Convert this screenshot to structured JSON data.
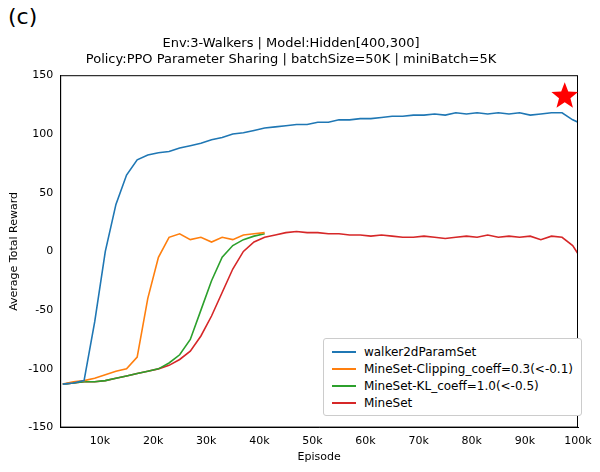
{
  "chart_data": {
    "type": "line",
    "panel_label": "(c)",
    "title": [
      "Env:3-Walkers | Model:Hidden[400,300]",
      "Policy:PPO Parameter Sharing | batchSize=50K | miniBatch=5K"
    ],
    "x_label": "Episode",
    "y_label": "Average Total Reward",
    "x": [
      3000,
      5000,
      7000,
      9000,
      11000,
      13000,
      15000,
      17000,
      19000,
      21000,
      23000,
      25000,
      27000,
      29000,
      31000,
      33000,
      35000,
      37000,
      39000,
      41000,
      43000,
      45000,
      47000,
      49000,
      51000,
      53000,
      55000,
      57000,
      59000,
      61000,
      63000,
      65000,
      67000,
      69000,
      71000,
      73000,
      75000,
      77000,
      79000,
      81000,
      83000,
      85000,
      87000,
      89000,
      91000,
      93000,
      95000,
      97000,
      99000,
      100000
    ],
    "series": [
      {
        "name": "walker2dParamSet",
        "color": "#1f77b4",
        "values": [
          -113,
          -112,
          -110,
          -60,
          0,
          40,
          65,
          78,
          82,
          84,
          85,
          88,
          90,
          92,
          95,
          97,
          100,
          101,
          103,
          105,
          106,
          107,
          108,
          108,
          110,
          110,
          112,
          112,
          113,
          113,
          114,
          115,
          115,
          116,
          116,
          117,
          116,
          118,
          117,
          118,
          117,
          118,
          117,
          118,
          116,
          117,
          118,
          118,
          112,
          110
        ]
      },
      {
        "name": "MineSet-Clipping_coeff=0.3(<-0.1)",
        "color": "#ff7f0e",
        "values": [
          -113,
          -111,
          -110,
          -108,
          -105,
          -102,
          -100,
          -90,
          -40,
          -5,
          12,
          15,
          10,
          12,
          8,
          12,
          10,
          14,
          15,
          16,
          null,
          null,
          null,
          null,
          null,
          null,
          null,
          null,
          null,
          null,
          null,
          null,
          null,
          null,
          null,
          null,
          null,
          null,
          null,
          null,
          null,
          null,
          null,
          null,
          null,
          null,
          null,
          null,
          null,
          null
        ]
      },
      {
        "name": "MineSet-KL_coeff=1.0(<-0.5)",
        "color": "#2ca02c",
        "values": [
          -113,
          -112,
          -111,
          -111,
          -110,
          -108,
          -106,
          -104,
          -102,
          -100,
          -95,
          -88,
          -75,
          -50,
          -25,
          -5,
          5,
          10,
          13,
          15,
          null,
          null,
          null,
          null,
          null,
          null,
          null,
          null,
          null,
          null,
          null,
          null,
          null,
          null,
          null,
          null,
          null,
          null,
          null,
          null,
          null,
          null,
          null,
          null,
          null,
          null,
          null,
          null,
          null,
          null
        ]
      },
      {
        "name": "MineSet",
        "color": "#d62728",
        "values": [
          -113,
          -112,
          -111,
          -111,
          -110,
          -108,
          -106,
          -104,
          -102,
          -100,
          -97,
          -92,
          -85,
          -72,
          -55,
          -35,
          -15,
          0,
          8,
          12,
          14,
          16,
          17,
          16,
          16,
          15,
          15,
          14,
          14,
          13,
          14,
          13,
          12,
          12,
          13,
          12,
          11,
          12,
          13,
          12,
          14,
          12,
          13,
          12,
          13,
          10,
          13,
          12,
          5,
          -2
        ]
      }
    ],
    "highlight": {
      "x": 97500,
      "y": 132,
      "marker": "star",
      "color": "#ff0000"
    },
    "xlim": [
      2500,
      100000
    ],
    "xticks": [
      {
        "value": 10000,
        "label": "10k"
      },
      {
        "value": 20000,
        "label": "20k"
      },
      {
        "value": 30000,
        "label": "30k"
      },
      {
        "value": 40000,
        "label": "40k"
      },
      {
        "value": 50000,
        "label": "50k"
      },
      {
        "value": 60000,
        "label": "60k"
      },
      {
        "value": 70000,
        "label": "70k"
      },
      {
        "value": 80000,
        "label": "80k"
      },
      {
        "value": 90000,
        "label": "90k"
      },
      {
        "value": 100000,
        "label": "100k"
      }
    ],
    "ylim": [
      -150,
      150
    ],
    "yticks": [
      -150,
      -100,
      -50,
      0,
      50,
      100,
      150
    ],
    "grid": false,
    "legend": "lower right"
  }
}
